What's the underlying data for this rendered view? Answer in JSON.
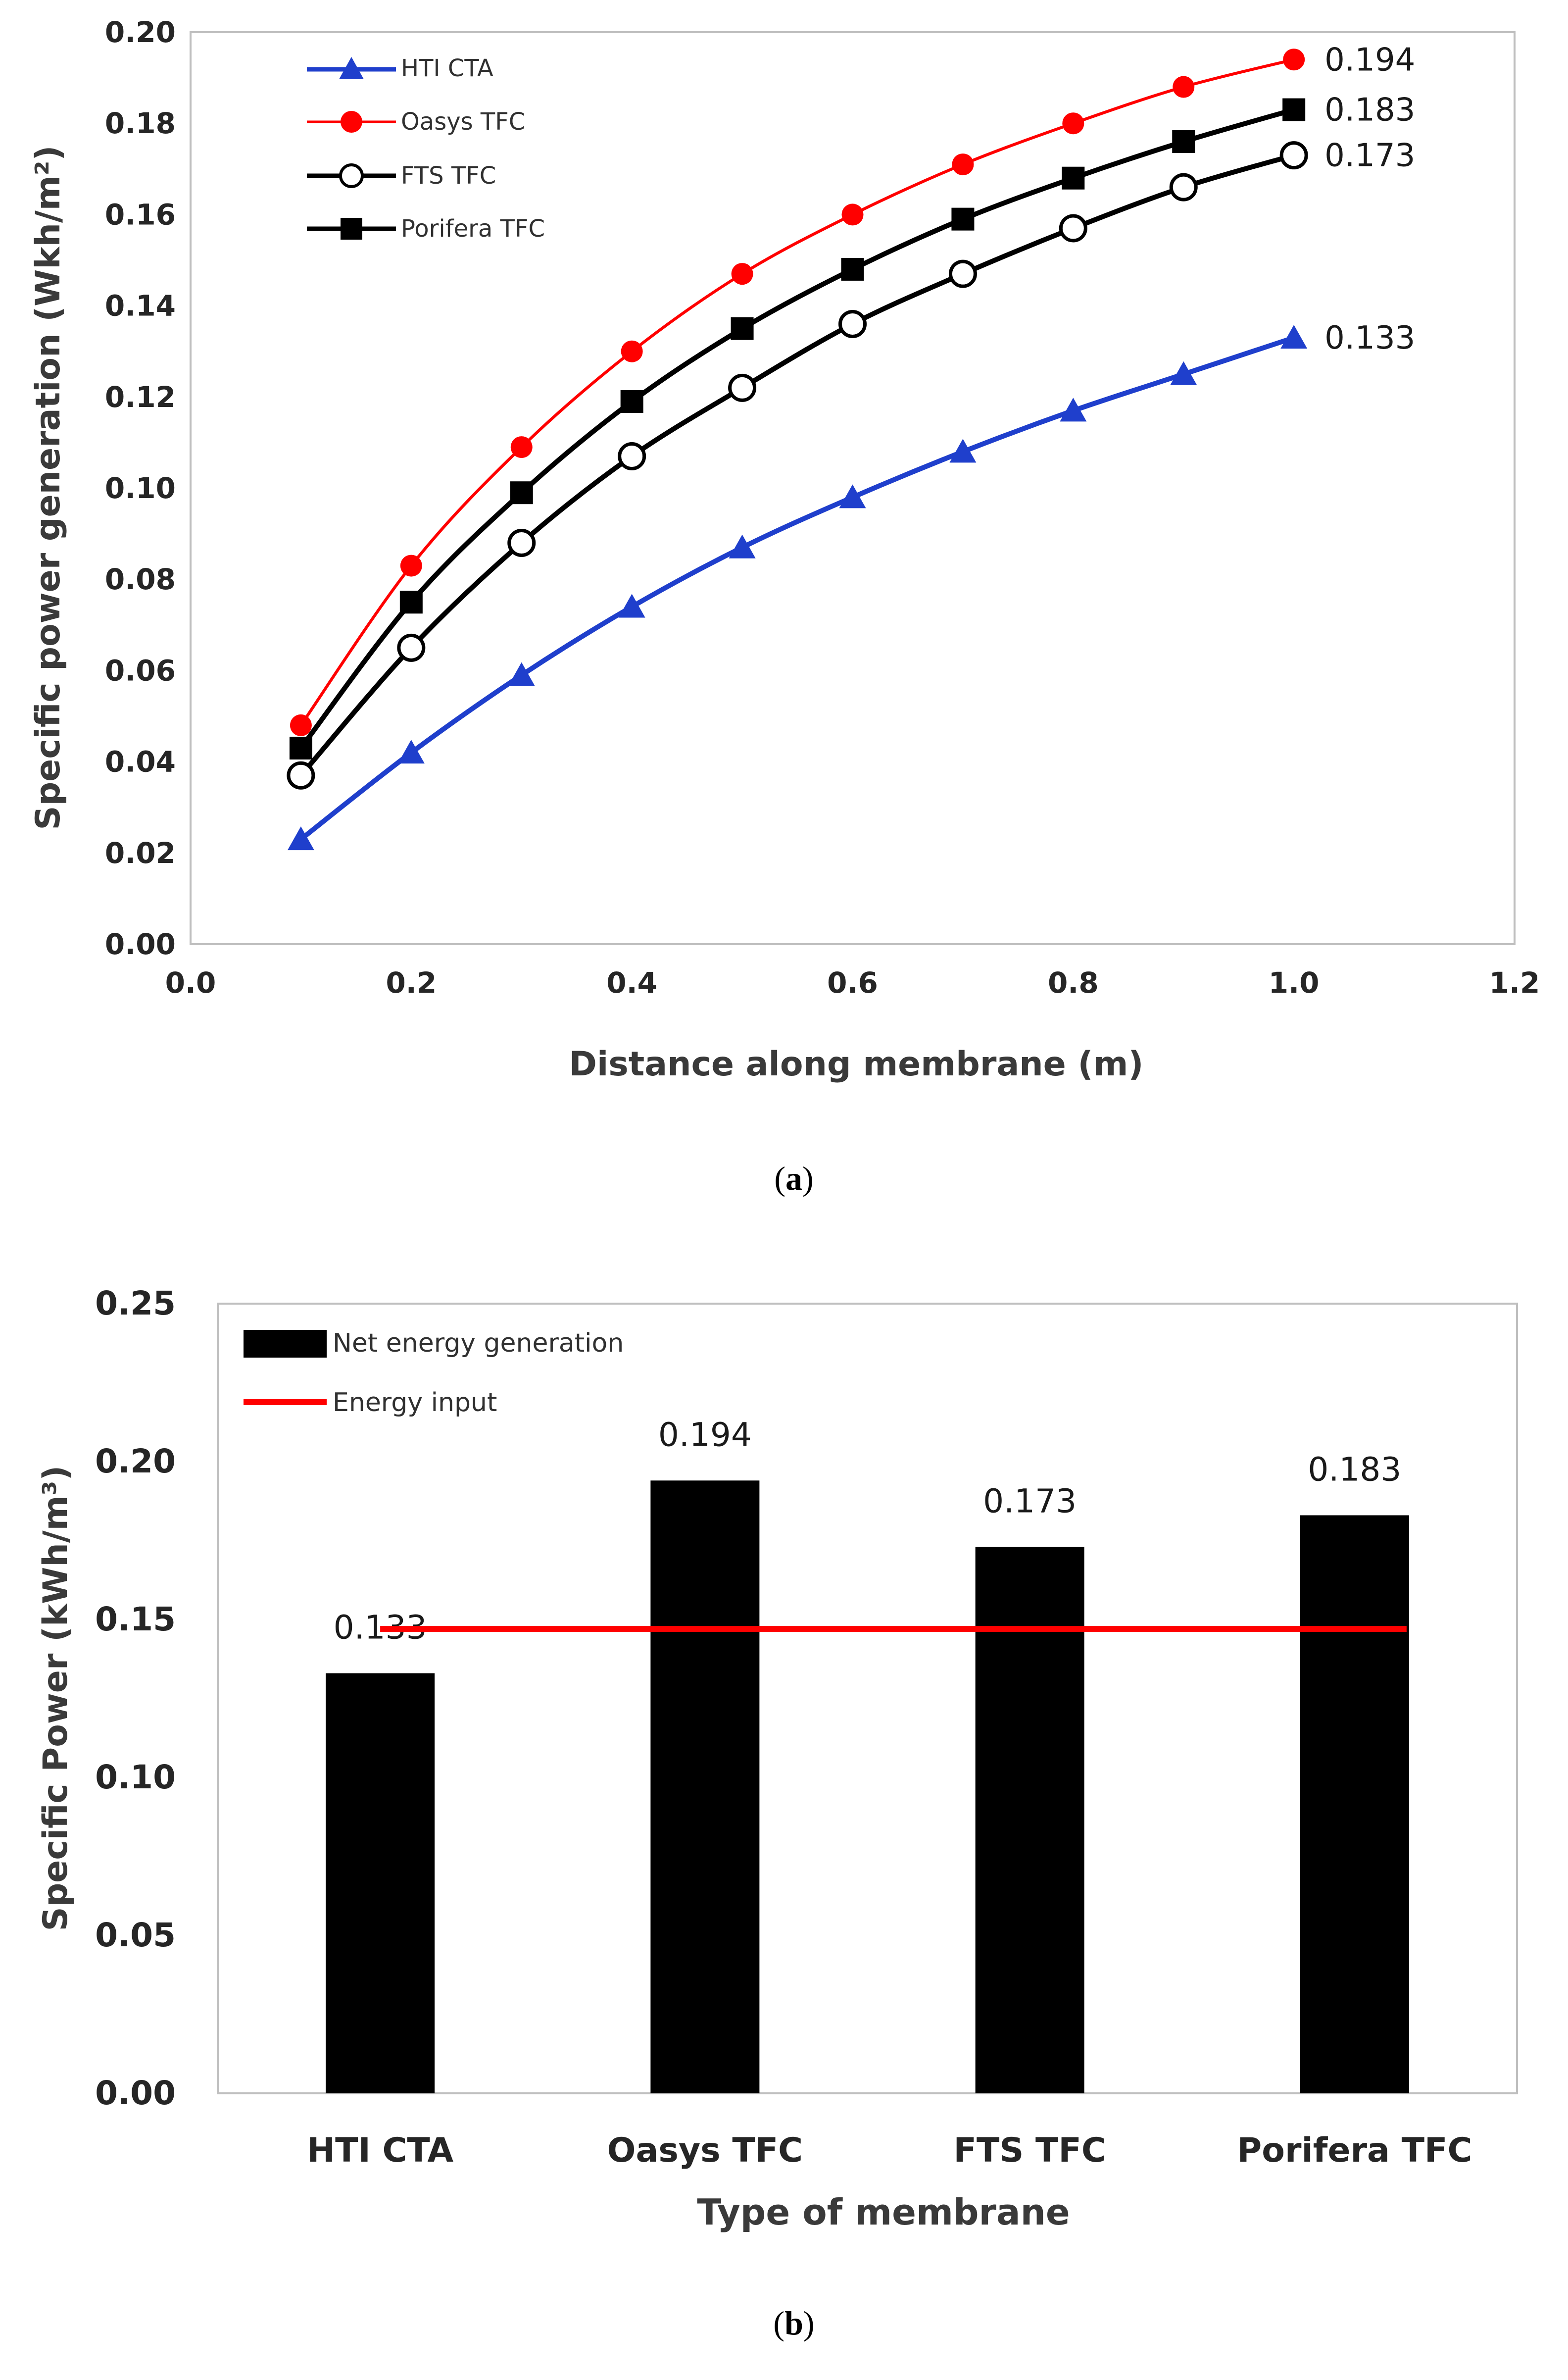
{
  "chart_data": [
    {
      "id": "a",
      "type": "line",
      "caption": "a",
      "title": "",
      "xlabel": "Distance along membrane (m)",
      "ylabel": "Specific power generation (Wkh/m²)",
      "xlim": [
        0.0,
        1.2
      ],
      "ylim": [
        0.0,
        0.2
      ],
      "xticks": [
        "0.0",
        "0.2",
        "0.4",
        "0.6",
        "0.8",
        "1.0",
        "1.2"
      ],
      "yticks": [
        "0.00",
        "0.02",
        "0.04",
        "0.06",
        "0.08",
        "0.10",
        "0.12",
        "0.14",
        "0.16",
        "0.18",
        "0.20"
      ],
      "grid": false,
      "legend_position": "top-left",
      "x": [
        0.1,
        0.2,
        0.3,
        0.4,
        0.5,
        0.6,
        0.7,
        0.8,
        0.9,
        1.0
      ],
      "series": [
        {
          "name": "HTI CTA",
          "color": "#1f3fcc",
          "marker": "triangle",
          "values": [
            0.023,
            0.042,
            0.059,
            0.074,
            0.087,
            0.098,
            0.108,
            0.117,
            0.125,
            0.133
          ],
          "end_label": "0.133"
        },
        {
          "name": "Oasys TFC",
          "color": "#ff0000",
          "marker": "circle-filled",
          "values": [
            0.048,
            0.083,
            0.109,
            0.13,
            0.147,
            0.16,
            0.171,
            0.18,
            0.188,
            0.194
          ],
          "end_label": "0.194"
        },
        {
          "name": "FTS TFC",
          "color": "#000000",
          "marker": "circle-open",
          "values": [
            0.037,
            0.065,
            0.088,
            0.107,
            0.122,
            0.136,
            0.147,
            0.157,
            0.166,
            0.173
          ],
          "end_label": "0.173"
        },
        {
          "name": "Porifera TFC",
          "color": "#000000",
          "marker": "square",
          "values": [
            0.043,
            0.075,
            0.099,
            0.119,
            0.135,
            0.148,
            0.159,
            0.168,
            0.176,
            0.183
          ],
          "end_label": "0.183"
        }
      ]
    },
    {
      "id": "b",
      "type": "bar",
      "caption": "b",
      "title": "",
      "xlabel": "Type of membrane",
      "ylabel": "Specific Power (kWh/m³)",
      "ylim": [
        0.0,
        0.25
      ],
      "yticks": [
        "0.00",
        "0.05",
        "0.10",
        "0.15",
        "0.20",
        "0.25"
      ],
      "grid": false,
      "legend_position": "top-left",
      "categories": [
        "HTI CTA",
        "Oasys TFC",
        "FTS TFC",
        "Porifera TFC"
      ],
      "series": [
        {
          "name": "Net energy generation",
          "color": "#000000",
          "values": [
            0.133,
            0.194,
            0.173,
            0.183
          ],
          "labels": [
            "0.133",
            "0.194",
            "0.173",
            "0.183"
          ]
        }
      ],
      "lines": [
        {
          "name": "Energy input",
          "color": "#ff0000",
          "value": 0.147
        }
      ]
    }
  ]
}
